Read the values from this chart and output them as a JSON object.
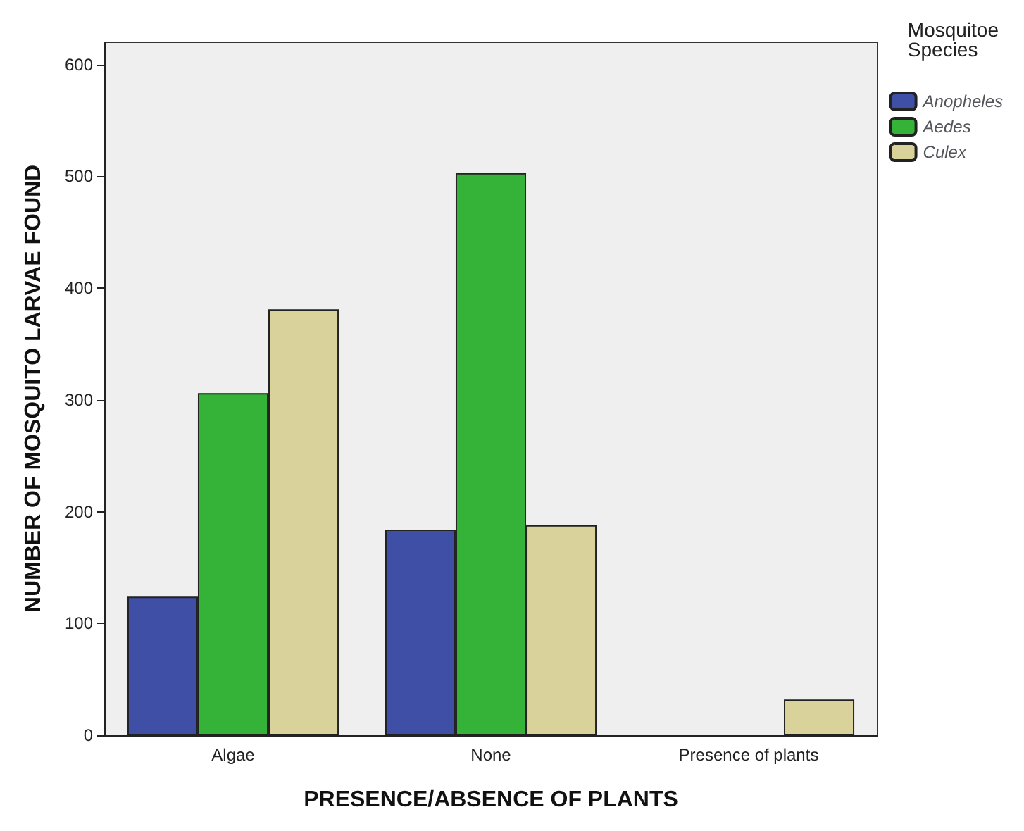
{
  "chart_data": {
    "type": "bar",
    "xlabel": "PRESENCE/ABSENCE OF PLANTS",
    "ylabel": "NUMBER OF MOSQUITO LARVAE FOUND",
    "legend_title": "Mosquitoe Species",
    "categories": [
      "Algae",
      "None",
      "Presence of plants"
    ],
    "series": [
      {
        "name": "Anopheles",
        "color": "#3f4fa6",
        "values": [
          124,
          184,
          0
        ]
      },
      {
        "name": "Aedes",
        "color": "#35b339",
        "values": [
          306,
          503,
          0
        ]
      },
      {
        "name": "Culex",
        "color": "#d9d39b",
        "values": [
          381,
          188,
          32
        ]
      }
    ],
    "ylim": [
      0,
      620
    ],
    "yticks": [
      0,
      100,
      200,
      300,
      400,
      500,
      600
    ],
    "grid": false,
    "legend": "top right"
  }
}
